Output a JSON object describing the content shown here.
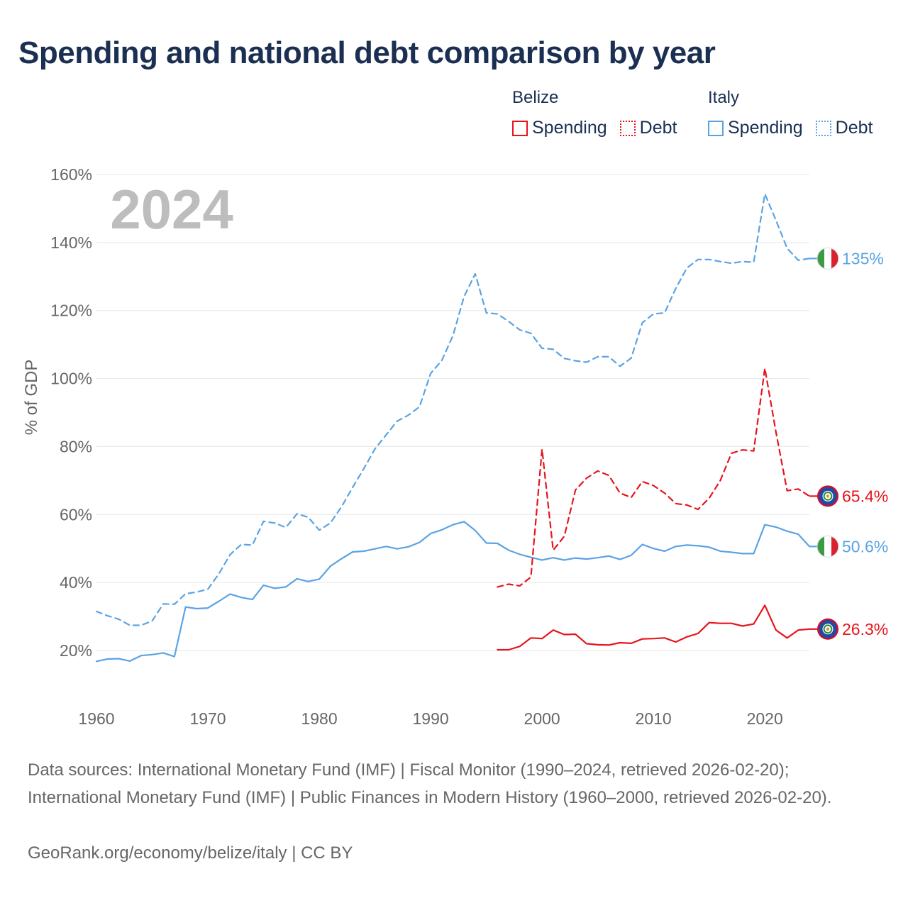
{
  "title": "Spending and national debt comparison by year",
  "legend": {
    "groups": [
      {
        "name": "Belize",
        "items": [
          {
            "label": "Spending",
            "style": "solid",
            "color": "#e8141c"
          },
          {
            "label": "Debt",
            "style": "dotted",
            "color": "#e8141c"
          }
        ]
      },
      {
        "name": "Italy",
        "items": [
          {
            "label": "Spending",
            "style": "solid",
            "color": "#5ba3e3"
          },
          {
            "label": "Debt",
            "style": "dotted",
            "color": "#5ba3e3"
          }
        ]
      }
    ]
  },
  "chart_data": {
    "type": "line",
    "year_label": "2024",
    "ylabel": "% of GDP",
    "xlabel": "",
    "xlim": [
      1960,
      2024
    ],
    "ylim": [
      10,
      160
    ],
    "y_ticks": [
      20,
      40,
      60,
      80,
      100,
      120,
      140,
      160
    ],
    "y_tick_labels": [
      "20%",
      "40%",
      "60%",
      "80%",
      "100%",
      "120%",
      "140%",
      "160%"
    ],
    "x_ticks": [
      1960,
      1970,
      1980,
      1990,
      2000,
      2010,
      2020
    ],
    "x_tick_labels": [
      "1960",
      "1970",
      "1980",
      "1990",
      "2000",
      "2010",
      "2020"
    ],
    "grid": true,
    "series": [
      {
        "name": "Italy Debt",
        "country": "Italy",
        "measure": "Debt",
        "color": "#5ba3e3",
        "dashed": true,
        "end_label": "135%",
        "flag": "italy",
        "start": 1960,
        "values": [
          31.5,
          30.2,
          29.2,
          27.4,
          27.4,
          28.7,
          33.7,
          33.6,
          36.7,
          37.2,
          38.0,
          42.6,
          48.2,
          51.2,
          51.0,
          58.0,
          57.5,
          56.2,
          60.2,
          59.2,
          55.4,
          57.5,
          62.3,
          68.0,
          73.5,
          79.3,
          83.4,
          87.5,
          89.2,
          91.7,
          101.5,
          105.3,
          112.6,
          124.1,
          130.8,
          119.3,
          119.0,
          116.8,
          114.3,
          113.3,
          108.9,
          108.6,
          105.9,
          105.2,
          104.8,
          106.4,
          106.4,
          103.6,
          106.0,
          116.4,
          119.0,
          119.3,
          126.5,
          132.5,
          135.0,
          135.0,
          134.4,
          133.9,
          134.4,
          134.2,
          154.3,
          146.5,
          138.3,
          134.8,
          135.3
        ]
      },
      {
        "name": "Italy Spending",
        "country": "Italy",
        "measure": "Spending",
        "color": "#5ba3e3",
        "dashed": false,
        "end_label": "50.6%",
        "flag": "italy",
        "start": 1960,
        "values": [
          16.8,
          17.5,
          17.6,
          16.9,
          18.5,
          18.8,
          19.3,
          18.2,
          32.8,
          32.3,
          32.5,
          34.5,
          36.6,
          35.6,
          35.0,
          39.2,
          38.3,
          38.7,
          41.1,
          40.3,
          41.0,
          44.8,
          47.0,
          49.0,
          49.2,
          49.9,
          50.6,
          49.9,
          50.5,
          51.8,
          54.4,
          55.5,
          57.0,
          57.9,
          55.3,
          51.6,
          51.5,
          49.5,
          48.3,
          47.4,
          46.6,
          47.3,
          46.6,
          47.2,
          46.9,
          47.3,
          47.8,
          46.8,
          48.0,
          51.2,
          50.0,
          49.2,
          50.6,
          51.0,
          50.8,
          50.4,
          49.2,
          48.9,
          48.5,
          48.5,
          57.0,
          56.3,
          55.1,
          54.2,
          50.6
        ]
      },
      {
        "name": "Belize Debt",
        "country": "Belize",
        "measure": "Debt",
        "color": "#e8141c",
        "dashed": true,
        "end_label": "65.4%",
        "flag": "belize",
        "start": 1996,
        "values": [
          38.7,
          39.5,
          39.0,
          41.6,
          79.2,
          49.5,
          53.6,
          67.2,
          70.7,
          72.8,
          71.5,
          66.3,
          65.0,
          69.7,
          68.5,
          66.3,
          63.2,
          62.8,
          61.5,
          64.8,
          70.0,
          78.0,
          79.0,
          78.7,
          103.0,
          84.2,
          67.0,
          67.5,
          65.4
        ]
      },
      {
        "name": "Belize Spending",
        "country": "Belize",
        "measure": "Spending",
        "color": "#e8141c",
        "dashed": false,
        "end_label": "26.3%",
        "flag": "belize",
        "start": 1996,
        "values": [
          20.2,
          20.2,
          21.2,
          23.7,
          23.5,
          26.0,
          24.7,
          24.8,
          22.0,
          21.7,
          21.6,
          22.3,
          22.1,
          23.4,
          23.5,
          23.7,
          22.5,
          24.0,
          25.0,
          28.2,
          28.0,
          28.0,
          27.2,
          27.8,
          33.3,
          26.0,
          23.7,
          26.0,
          26.3
        ]
      }
    ]
  },
  "footer": {
    "sources": "Data sources: International Monetary Fund (IMF) | Fiscal Monitor (1990–2024, retrieved 2026-02-20); International Monetary Fund (IMF) | Public Finances in Modern History (1960–2000, retrieved 2026-02-20).",
    "credit": "GeoRank.org/economy/belize/italy | CC BY"
  }
}
